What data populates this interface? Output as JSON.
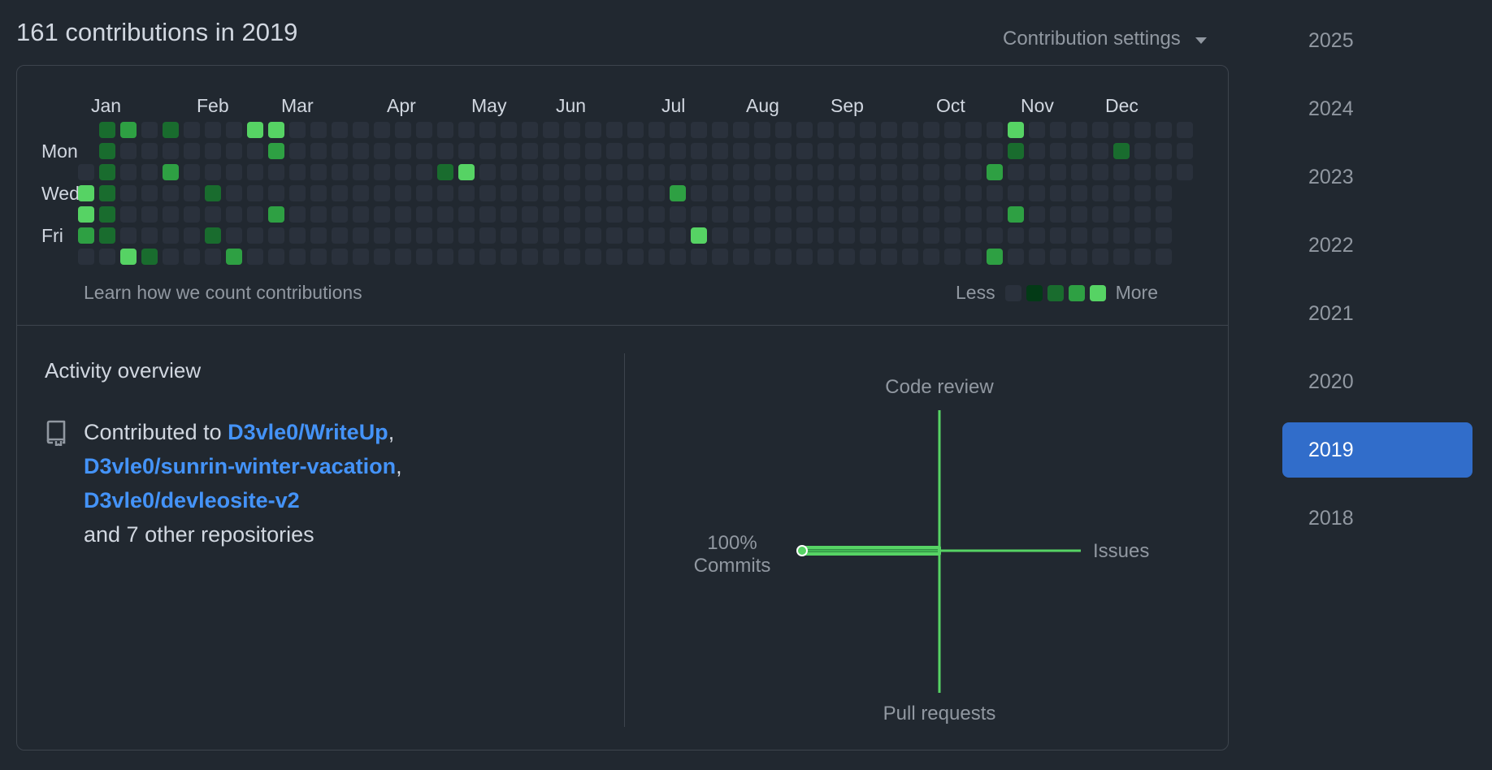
{
  "header": {
    "summary": "161 contributions in 2019",
    "settings_label": "Contribution settings"
  },
  "graph": {
    "months": [
      "Jan",
      "Feb",
      "Mar",
      "Apr",
      "May",
      "Jun",
      "Jul",
      "Aug",
      "Sep",
      "Oct",
      "Nov",
      "Dec"
    ],
    "days": [
      "Mon",
      "Wed",
      "Fri"
    ],
    "learn_link": "Learn how we count contributions",
    "legend_less": "Less",
    "legend_more": "More",
    "colors": [
      "#2a313c",
      "#033a16",
      "#196c2e",
      "#2ea043",
      "#56d364"
    ],
    "active_cells": [
      [
        1,
        0,
        2
      ],
      [
        1,
        1,
        2
      ],
      [
        1,
        2,
        2
      ],
      [
        1,
        3,
        2
      ],
      [
        1,
        4,
        2
      ],
      [
        1,
        5,
        2
      ],
      [
        0,
        3,
        4
      ],
      [
        0,
        4,
        4
      ],
      [
        0,
        5,
        3
      ],
      [
        2,
        0,
        3
      ],
      [
        2,
        6,
        4
      ],
      [
        3,
        6,
        2
      ],
      [
        4,
        0,
        2
      ],
      [
        4,
        2,
        3
      ],
      [
        6,
        3,
        2
      ],
      [
        6,
        5,
        2
      ],
      [
        7,
        6,
        3
      ],
      [
        8,
        0,
        4
      ],
      [
        9,
        0,
        4
      ],
      [
        9,
        1,
        3
      ],
      [
        9,
        4,
        3
      ],
      [
        17,
        2,
        2
      ],
      [
        18,
        2,
        4
      ],
      [
        28,
        3,
        3
      ],
      [
        29,
        5,
        4
      ],
      [
        43,
        2,
        3
      ],
      [
        43,
        6,
        3
      ],
      [
        44,
        0,
        4
      ],
      [
        44,
        1,
        2
      ],
      [
        44,
        4,
        3
      ],
      [
        49,
        1,
        2
      ]
    ]
  },
  "overview": {
    "title": "Activity overview",
    "prefix": "Contributed to ",
    "repos": [
      "D3vle0/WriteUp",
      "D3vle0/sunrin-winter-vacation",
      "D3vle0/devleosite-v2"
    ],
    "suffix": "and 7 other repositories",
    "chart": {
      "code_review": "Code review",
      "issues": "Issues",
      "pull_requests": "Pull requests",
      "commits_pct": "100%",
      "commits": "Commits"
    }
  },
  "years": [
    "2025",
    "2024",
    "2023",
    "2022",
    "2021",
    "2020",
    "2019",
    "2018"
  ],
  "active_year": "2019"
}
